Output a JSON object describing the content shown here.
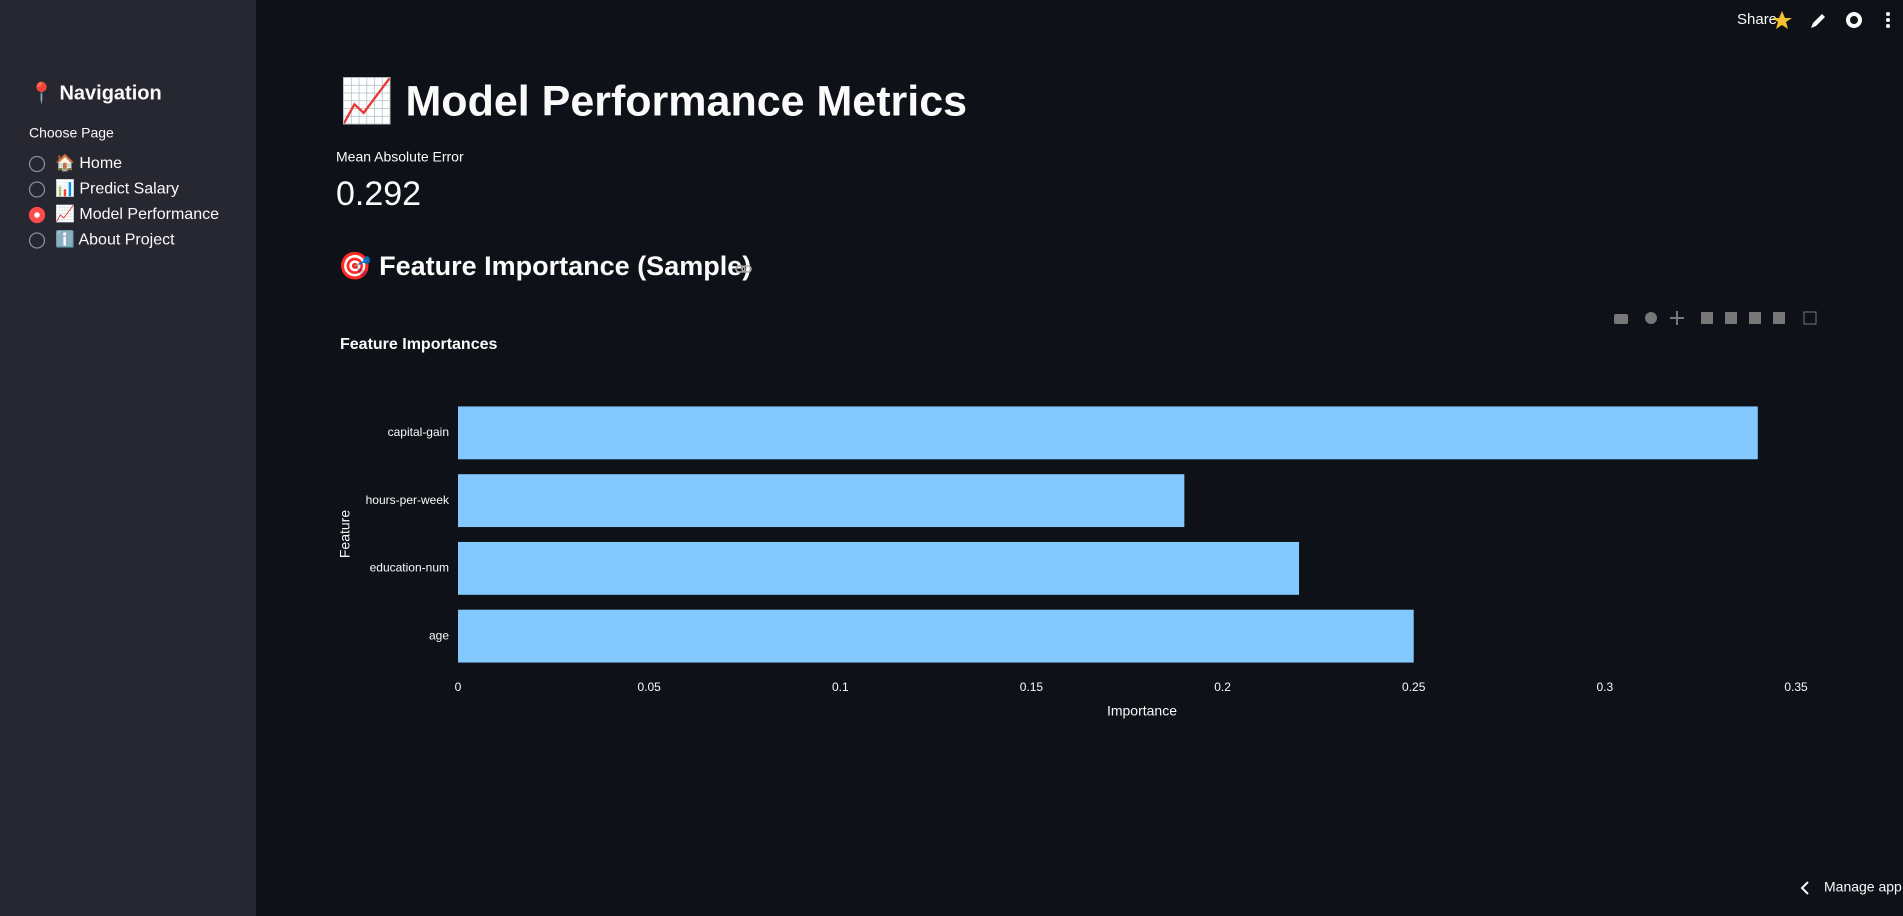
{
  "toolbar": {
    "share": "Share"
  },
  "sidebar": {
    "title": "📍 Navigation",
    "radio_label": "Choose Page",
    "options": [
      "🏠 Home",
      "📊 Predict Salary",
      "📈 Model Performance",
      "ℹ️ About Project"
    ]
  },
  "header": {
    "title": "📈 Model Performance Metrics"
  },
  "metric": {
    "label": "Mean Absolute Error",
    "value": 0.292
  },
  "section": {
    "title": "🎯 Feature Importance (Sample)"
  },
  "chart_data": {
    "type": "bar",
    "orientation": "horizontal",
    "title": "Feature Importances",
    "categories": [
      "age",
      "education-num",
      "hours-per-week",
      "capital-gain"
    ],
    "values": [
      0.25,
      0.22,
      0.19,
      0.34
    ],
    "color": "#83c9ff",
    "xlim": [
      0,
      0.358
    ],
    "xticks": [
      0,
      0.05,
      0.1,
      0.15,
      0.2,
      0.25,
      0.3,
      0.35
    ],
    "x_label": "Importance",
    "y_label": "Feature",
    "grid": false
  },
  "footer": {
    "manage": "Manage app"
  }
}
